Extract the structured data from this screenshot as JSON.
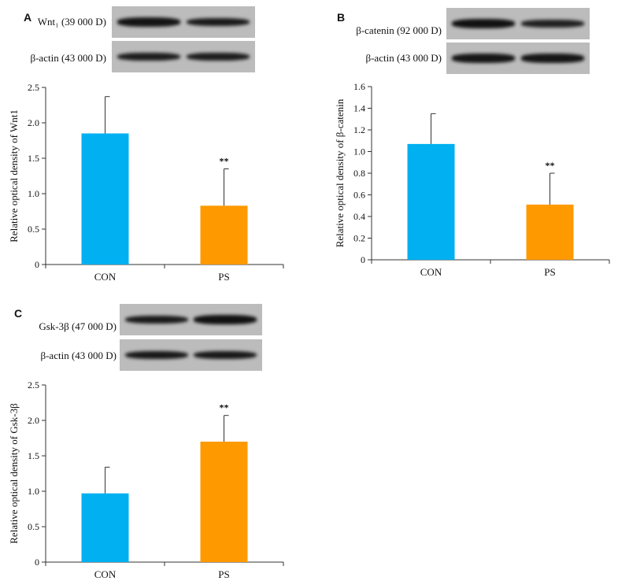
{
  "panels": [
    {
      "letter": "A",
      "blots": [
        {
          "label": "Wnt₁ (39 000 D)",
          "strength": [
            0.9,
            0.75
          ]
        },
        {
          "label": "β-actin (43 000 D)",
          "strength": [
            0.7,
            0.7
          ]
        }
      ]
    },
    {
      "letter": "B",
      "blots": [
        {
          "label": "β-catenin (92 000 D)",
          "strength": [
            0.95,
            0.6
          ]
        },
        {
          "label": "β-actin (43 000 D)",
          "strength": [
            0.85,
            0.85
          ]
        }
      ]
    },
    {
      "letter": "C",
      "blots": [
        {
          "label": "Gsk-3β (47 000 D)",
          "strength": [
            0.75,
            0.95
          ]
        },
        {
          "label": "β-actin (43 000 D)",
          "strength": [
            0.8,
            0.8
          ]
        }
      ]
    }
  ],
  "colors": {
    "CON": "#00b0f0",
    "PS": "#ff9900"
  },
  "chart_data": [
    {
      "type": "bar",
      "categories": [
        "CON",
        "PS"
      ],
      "values": [
        1.85,
        0.83
      ],
      "errors": [
        0.52,
        0.52
      ],
      "significance": [
        "",
        "**"
      ],
      "ylabel": "Relative optical density of Wnt1",
      "ylim": [
        0,
        2.5
      ],
      "yticks": [
        "0",
        "0.5",
        "1.0",
        "1.5",
        "2.0",
        "2.5"
      ],
      "ytick_values": [
        0,
        0.5,
        1.0,
        1.5,
        2.0,
        2.5
      ]
    },
    {
      "type": "bar",
      "categories": [
        "CON",
        "PS"
      ],
      "values": [
        1.07,
        0.51
      ],
      "errors": [
        0.28,
        0.29
      ],
      "significance": [
        "",
        "**"
      ],
      "ylabel": "Relative optical density of β-catenin",
      "ylim": [
        0,
        1.6
      ],
      "yticks": [
        "0",
        "0.2",
        "0.4",
        "0.6",
        "0.8",
        "1.0",
        "1.2",
        "1.4",
        "1.6"
      ],
      "ytick_values": [
        0,
        0.2,
        0.4,
        0.6,
        0.8,
        1.0,
        1.2,
        1.4,
        1.6
      ]
    },
    {
      "type": "bar",
      "categories": [
        "CON",
        "PS"
      ],
      "values": [
        0.97,
        1.7
      ],
      "errors": [
        0.37,
        0.37
      ],
      "significance": [
        "",
        "**"
      ],
      "ylabel": "Relative optical density of Gsk-3β",
      "ylim": [
        0,
        2.5
      ],
      "yticks": [
        "0",
        "0.5",
        "1.0",
        "1.5",
        "2.0",
        "2.5"
      ],
      "ytick_values": [
        0,
        0.5,
        1.0,
        1.5,
        2.0,
        2.5
      ]
    }
  ]
}
